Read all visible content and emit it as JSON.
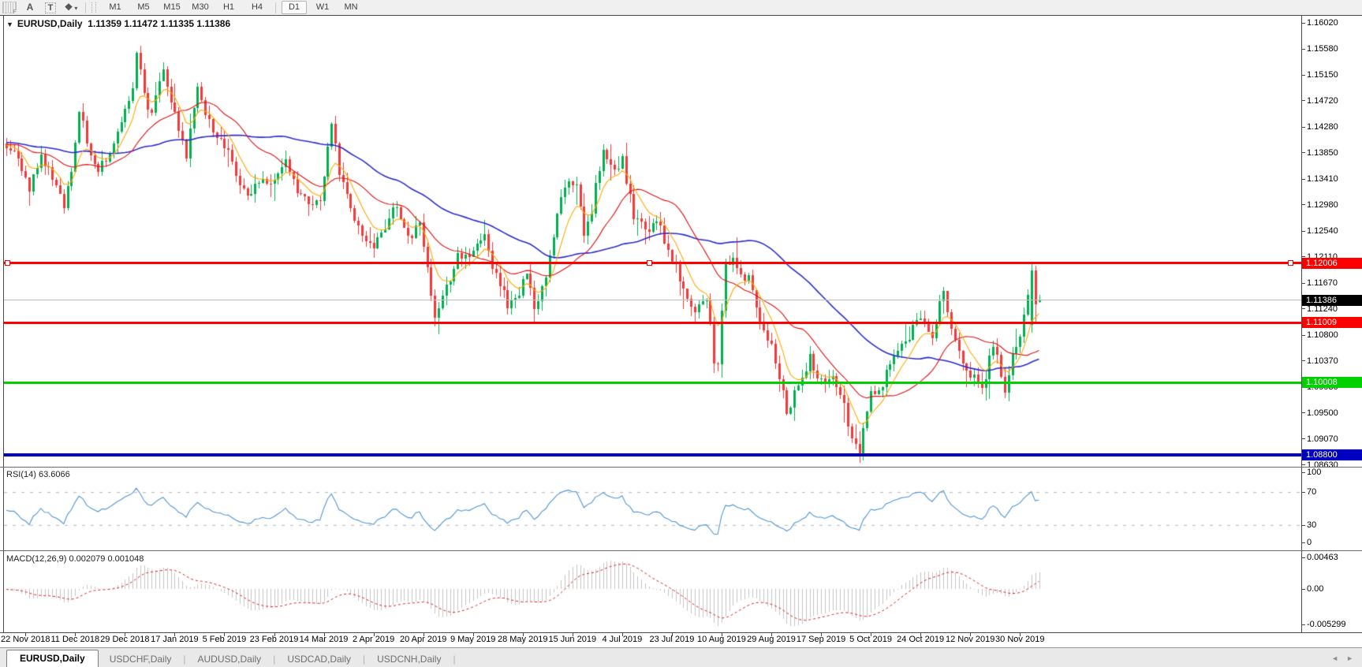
{
  "toolbar": {
    "tools": [
      {
        "type": "hatch",
        "label": "F",
        "name": "toolbar-grip-icon"
      },
      {
        "type": "text",
        "label": "A",
        "name": "text-label-tool-button"
      },
      {
        "type": "boxed",
        "label": "T",
        "name": "text-box-tool-button"
      },
      {
        "type": "objects",
        "label": "❖",
        "caret": "▾",
        "name": "objects-tool-button"
      }
    ],
    "timeframes": [
      {
        "label": "M1"
      },
      {
        "label": "M5"
      },
      {
        "label": "M15"
      },
      {
        "label": "M30"
      },
      {
        "label": "H1"
      },
      {
        "label": "H4"
      },
      {
        "label": "D1",
        "active": true
      },
      {
        "label": "W1"
      },
      {
        "label": "MN"
      }
    ]
  },
  "chart": {
    "collapse_caret": "▼",
    "title_symbol": "EURUSD,Daily",
    "title_quotes": "1.11359 1.11472 1.11335 1.11386",
    "price_axis_labels": [
      "1.16020",
      "1.15580",
      "1.15150",
      "1.14720",
      "1.14280",
      "1.13850",
      "1.13410",
      "1.12980",
      "1.12540",
      "1.12110",
      "1.11670",
      "1.11240",
      "1.10800",
      "1.10370",
      "1.09930",
      "1.09500",
      "1.09070",
      "1.08630"
    ],
    "price_tags": [
      {
        "text": "1.12006",
        "price": 1.12006,
        "bg": "#fe0000",
        "fg": "#ffffff",
        "name": "resistance-price-tag"
      },
      {
        "text": "1.11386",
        "price": 1.11386,
        "bg": "#000000",
        "fg": "#ffffff",
        "name": "bid-price-tag"
      },
      {
        "text": "1.11009",
        "price": 1.11009,
        "bg": "#fe0000",
        "fg": "#ffffff",
        "name": "resistance-price-tag"
      },
      {
        "text": "1.10008",
        "price": 1.10008,
        "bg": "#00cf00",
        "fg": "#ffffff",
        "name": "support-price-tag"
      },
      {
        "text": "1.08800",
        "price": 1.088,
        "bg": "#0000c0",
        "fg": "#ffffff",
        "name": "support-price-tag"
      }
    ],
    "hlines": [
      {
        "price": 1.11386,
        "color": "#c0c0c0",
        "width": 1,
        "name": "bid-price-line"
      },
      {
        "price": 1.12006,
        "color": "#fe0000",
        "width": 3,
        "selected": true,
        "name": "resistance-line-1.12006"
      },
      {
        "price": 1.11009,
        "color": "#fe0000",
        "width": 3,
        "name": "resistance-line-1.11009"
      },
      {
        "price": 1.10008,
        "color": "#00cf00",
        "width": 3,
        "name": "support-line-1.10008"
      },
      {
        "price": 1.088,
        "color": "#0000c0",
        "width": 4,
        "name": "support-line-1.08800"
      }
    ],
    "dates": [
      "22 Nov 2018",
      "11 Dec 2018",
      "29 Dec 2018",
      "17 Jan 2019",
      "5 Feb 2019",
      "23 Feb 2019",
      "14 Mar 2019",
      "2 Apr 2019",
      "20 Apr 2019",
      "9 May 2019",
      "28 May 2019",
      "15 Jun 2019",
      "4 Jul 2019",
      "23 Jul 2019",
      "10 Aug 2019",
      "29 Aug 2019",
      "17 Sep 2019",
      "5 Oct 2019",
      "24 Oct 2019",
      "12 Nov 2019",
      "30 Nov 2019"
    ],
    "price_path_anchors": [
      [
        0,
        1.14
      ],
      [
        4,
        1.136
      ],
      [
        6,
        1.133
      ],
      [
        9,
        1.1385
      ],
      [
        12,
        1.1345
      ],
      [
        15,
        1.13
      ],
      [
        17,
        1.136
      ],
      [
        19,
        1.146
      ],
      [
        21,
        1.14
      ],
      [
        24,
        1.135
      ],
      [
        27,
        1.1385
      ],
      [
        30,
        1.143
      ],
      [
        33,
        1.15
      ],
      [
        34,
        1.156
      ],
      [
        36,
        1.148
      ],
      [
        38,
        1.145
      ],
      [
        41,
        1.153
      ],
      [
        44,
        1.1445
      ],
      [
        47,
        1.1385
      ],
      [
        50,
        1.1495
      ],
      [
        53,
        1.1435
      ],
      [
        57,
        1.14
      ],
      [
        60,
        1.1345
      ],
      [
        63,
        1.131
      ],
      [
        67,
        1.134
      ],
      [
        70,
        1.133
      ],
      [
        73,
        1.138
      ],
      [
        76,
        1.132
      ],
      [
        79,
        1.1298
      ],
      [
        82,
        1.131
      ],
      [
        85,
        1.1438
      ],
      [
        87,
        1.135
      ],
      [
        90,
        1.129
      ],
      [
        93,
        1.1252
      ],
      [
        96,
        1.1222
      ],
      [
        99,
        1.1262
      ],
      [
        102,
        1.1298
      ],
      [
        105,
        1.1242
      ],
      [
        108,
        1.1262
      ],
      [
        111,
        1.1155
      ],
      [
        112,
        1.1118
      ],
      [
        115,
        1.116
      ],
      [
        118,
        1.1218
      ],
      [
        122,
        1.1215
      ],
      [
        125,
        1.124
      ],
      [
        128,
        1.118
      ],
      [
        131,
        1.1128
      ],
      [
        134,
        1.1155
      ],
      [
        136,
        1.119
      ],
      [
        138,
        1.1132
      ],
      [
        141,
        1.117
      ],
      [
        144,
        1.129
      ],
      [
        147,
        1.133
      ],
      [
        149,
        1.134
      ],
      [
        151,
        1.1242
      ],
      [
        153,
        1.129
      ],
      [
        156,
        1.14
      ],
      [
        158,
        1.1355
      ],
      [
        161,
        1.1372
      ],
      [
        164,
        1.1282
      ],
      [
        167,
        1.1252
      ],
      [
        170,
        1.1272
      ],
      [
        174,
        1.1212
      ],
      [
        177,
        1.1152
      ],
      [
        180,
        1.1122
      ],
      [
        183,
        1.1142
      ],
      [
        185,
        1.1042
      ],
      [
        186,
        1.1032
      ],
      [
        188,
        1.1205
      ],
      [
        191,
        1.1198
      ],
      [
        194,
        1.1172
      ],
      [
        197,
        1.1102
      ],
      [
        200,
        1.1062
      ],
      [
        203,
        1.0992
      ],
      [
        204,
        1.0942
      ],
      [
        207,
        1.1002
      ],
      [
        210,
        1.1042
      ],
      [
        213,
        1.1002
      ],
      [
        216,
        1.1022
      ],
      [
        219,
        1.0962
      ],
      [
        221,
        1.0905
      ],
      [
        223,
        1.0888
      ],
      [
        226,
        1.0982
      ],
      [
        229,
        1.1002
      ],
      [
        232,
        1.1042
      ],
      [
        235,
        1.1072
      ],
      [
        239,
        1.1112
      ],
      [
        242,
        1.1082
      ],
      [
        245,
        1.1152
      ],
      [
        248,
        1.1072
      ],
      [
        251,
        1.1012
      ],
      [
        253,
        1.1022
      ],
      [
        255,
        1.0992
      ],
      [
        258,
        1.1062
      ],
      [
        261,
        1.0988
      ],
      [
        263,
        1.1042
      ],
      [
        265,
        1.1082
      ],
      [
        267,
        1.114
      ],
      [
        268,
        1.119
      ],
      [
        269,
        1.114
      ],
      [
        270,
        1.11386
      ]
    ],
    "last_candle": {
      "o": 1.11359,
      "h": 1.11472,
      "l": 1.11335,
      "c": 1.11386
    }
  },
  "rsi": {
    "label": "RSI(14)",
    "value": "63.6066",
    "axis": [
      {
        "text": "100",
        "v": 100
      },
      {
        "text": "70",
        "v": 70
      },
      {
        "text": "30",
        "v": 30
      },
      {
        "text": "0",
        "v": 0
      }
    ],
    "guides": [
      70,
      30
    ]
  },
  "macd": {
    "label": "MACD(12,26,9)",
    "value_main": "0.002079",
    "value_signal": "0.001048",
    "axis": [
      {
        "text": "0.00463",
        "v": 0.00463
      },
      {
        "text": "0.00",
        "v": 0
      },
      {
        "text": "-0.005299",
        "v": -0.005299
      }
    ]
  },
  "tabs": [
    {
      "label": "EURUSD,Daily",
      "active": true
    },
    {
      "label": "USDCHF,Daily"
    },
    {
      "label": "AUDUSD,Daily"
    },
    {
      "label": "USDCAD,Daily"
    },
    {
      "label": "USDCNH,Daily"
    }
  ],
  "tab_arrows": {
    "left": "◄",
    "right": "►"
  },
  "colors": {
    "bull": "#00b050",
    "bear": "#f23a3a",
    "ma_fast": "#ffa800",
    "ma_mid": "#e01010",
    "ma_slow": "#2b2bd0",
    "rsi_line": "#4f94d4",
    "rsi_guide": "#b4b4b4",
    "macd_hist": "#c4c4c4",
    "macd_signal": "#dd2020"
  }
}
